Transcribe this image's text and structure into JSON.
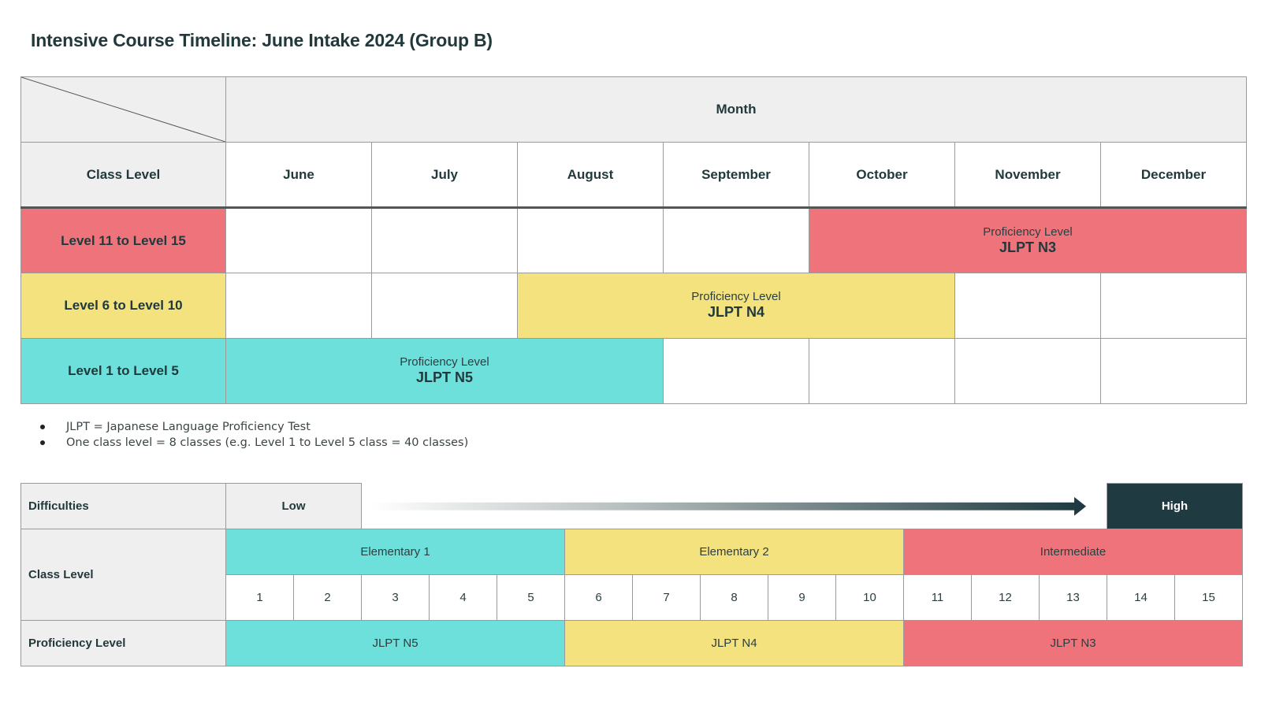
{
  "title": "Intensive Course Timeline: June Intake 2024 (Group B)",
  "timeline": {
    "month_header": "Month",
    "row_header": "Class Level",
    "months": [
      "June",
      "July",
      "August",
      "September",
      "October",
      "November",
      "December"
    ],
    "rows": [
      {
        "label": "Level 11 to Level 15",
        "color": "#ef737a",
        "start_month": "October",
        "end_month": "December",
        "bar_sub": "Proficiency Level",
        "bar_main": "JLPT N3"
      },
      {
        "label": "Level 6 to Level 10",
        "color": "#f3e27e",
        "start_month": "August",
        "end_month": "October",
        "bar_sub": "Proficiency Level",
        "bar_main": "JLPT N4"
      },
      {
        "label": "Level 1 to Level 5",
        "color": "#6ee0dc",
        "start_month": "June",
        "end_month": "August",
        "bar_sub": "Proficiency Level",
        "bar_main": "JLPT N5"
      }
    ]
  },
  "notes": [
    "JLPT = Japanese Language Proficiency Test",
    "One class level = 8 classes (e.g. Level 1 to Level 5 class = 40 classes)"
  ],
  "difficulty": {
    "label": "Difficulties",
    "low": "Low",
    "high": "High",
    "class_level_label": "Class Level",
    "groups": [
      "Elementary 1",
      "Elementary 2",
      "Intermediate"
    ],
    "levels": [
      "1",
      "2",
      "3",
      "4",
      "5",
      "6",
      "7",
      "8",
      "9",
      "10",
      "11",
      "12",
      "13",
      "14",
      "15"
    ],
    "proficiency_label": "Proficiency Level",
    "proficiency": [
      "JLPT N5",
      "JLPT N4",
      "JLPT N3"
    ]
  },
  "colors": {
    "n3": "#ef737a",
    "n4": "#f3e27e",
    "n5": "#6ee0dc",
    "high": "#1f3b41",
    "header": "#efefef"
  }
}
